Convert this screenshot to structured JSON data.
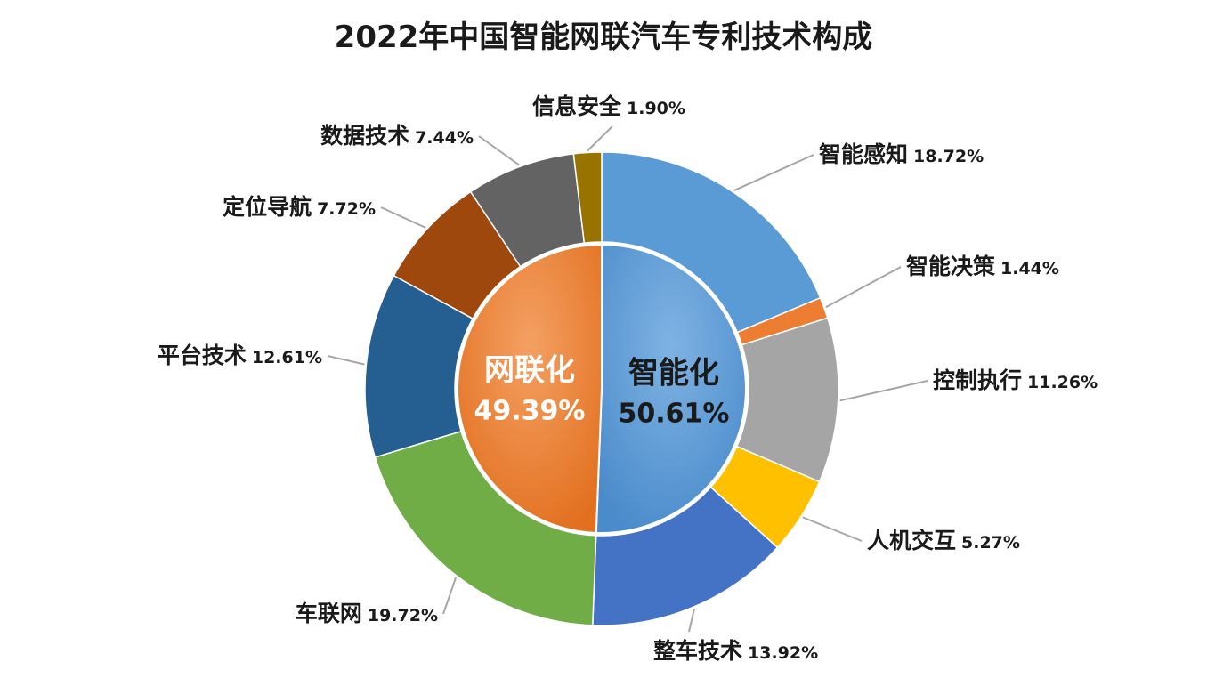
{
  "chart_data": {
    "type": "pie",
    "title": "2022年中国智能网联汽车专利技术构成",
    "inner": [
      {
        "name": "智能化",
        "value": 50.61,
        "label": "50.61%",
        "color": "#5b9bd5",
        "text_color": "#1a1a1a"
      },
      {
        "name": "网联化",
        "value": 49.39,
        "label": "49.39%",
        "color": "#ed7d31",
        "text_color": "#ffffff"
      }
    ],
    "outer": [
      {
        "name": "智能感知",
        "value": 18.72,
        "label": "18.72%",
        "color": "#5b9bd5"
      },
      {
        "name": "智能决策",
        "value": 1.44,
        "label": "1.44%",
        "color": "#ed7d31"
      },
      {
        "name": "控制执行",
        "value": 11.26,
        "label": "11.26%",
        "color": "#a5a5a5"
      },
      {
        "name": "人机交互",
        "value": 5.27,
        "label": "5.27%",
        "color": "#ffc000"
      },
      {
        "name": "整车技术",
        "value": 13.92,
        "label": "13.92%",
        "color": "#4472c4"
      },
      {
        "name": "车联网",
        "value": 19.72,
        "label": "19.72%",
        "color": "#70ad47"
      },
      {
        "name": "平台技术",
        "value": 12.61,
        "label": "12.61%",
        "color": "#255e91"
      },
      {
        "name": "定位导航",
        "value": 7.72,
        "label": "7.72%",
        "color": "#9e480e"
      },
      {
        "name": "数据技术",
        "value": 7.44,
        "label": "7.44%",
        "color": "#636363"
      },
      {
        "name": "信息安全",
        "value": 1.9,
        "label": "1.90%",
        "color": "#997300"
      }
    ]
  }
}
